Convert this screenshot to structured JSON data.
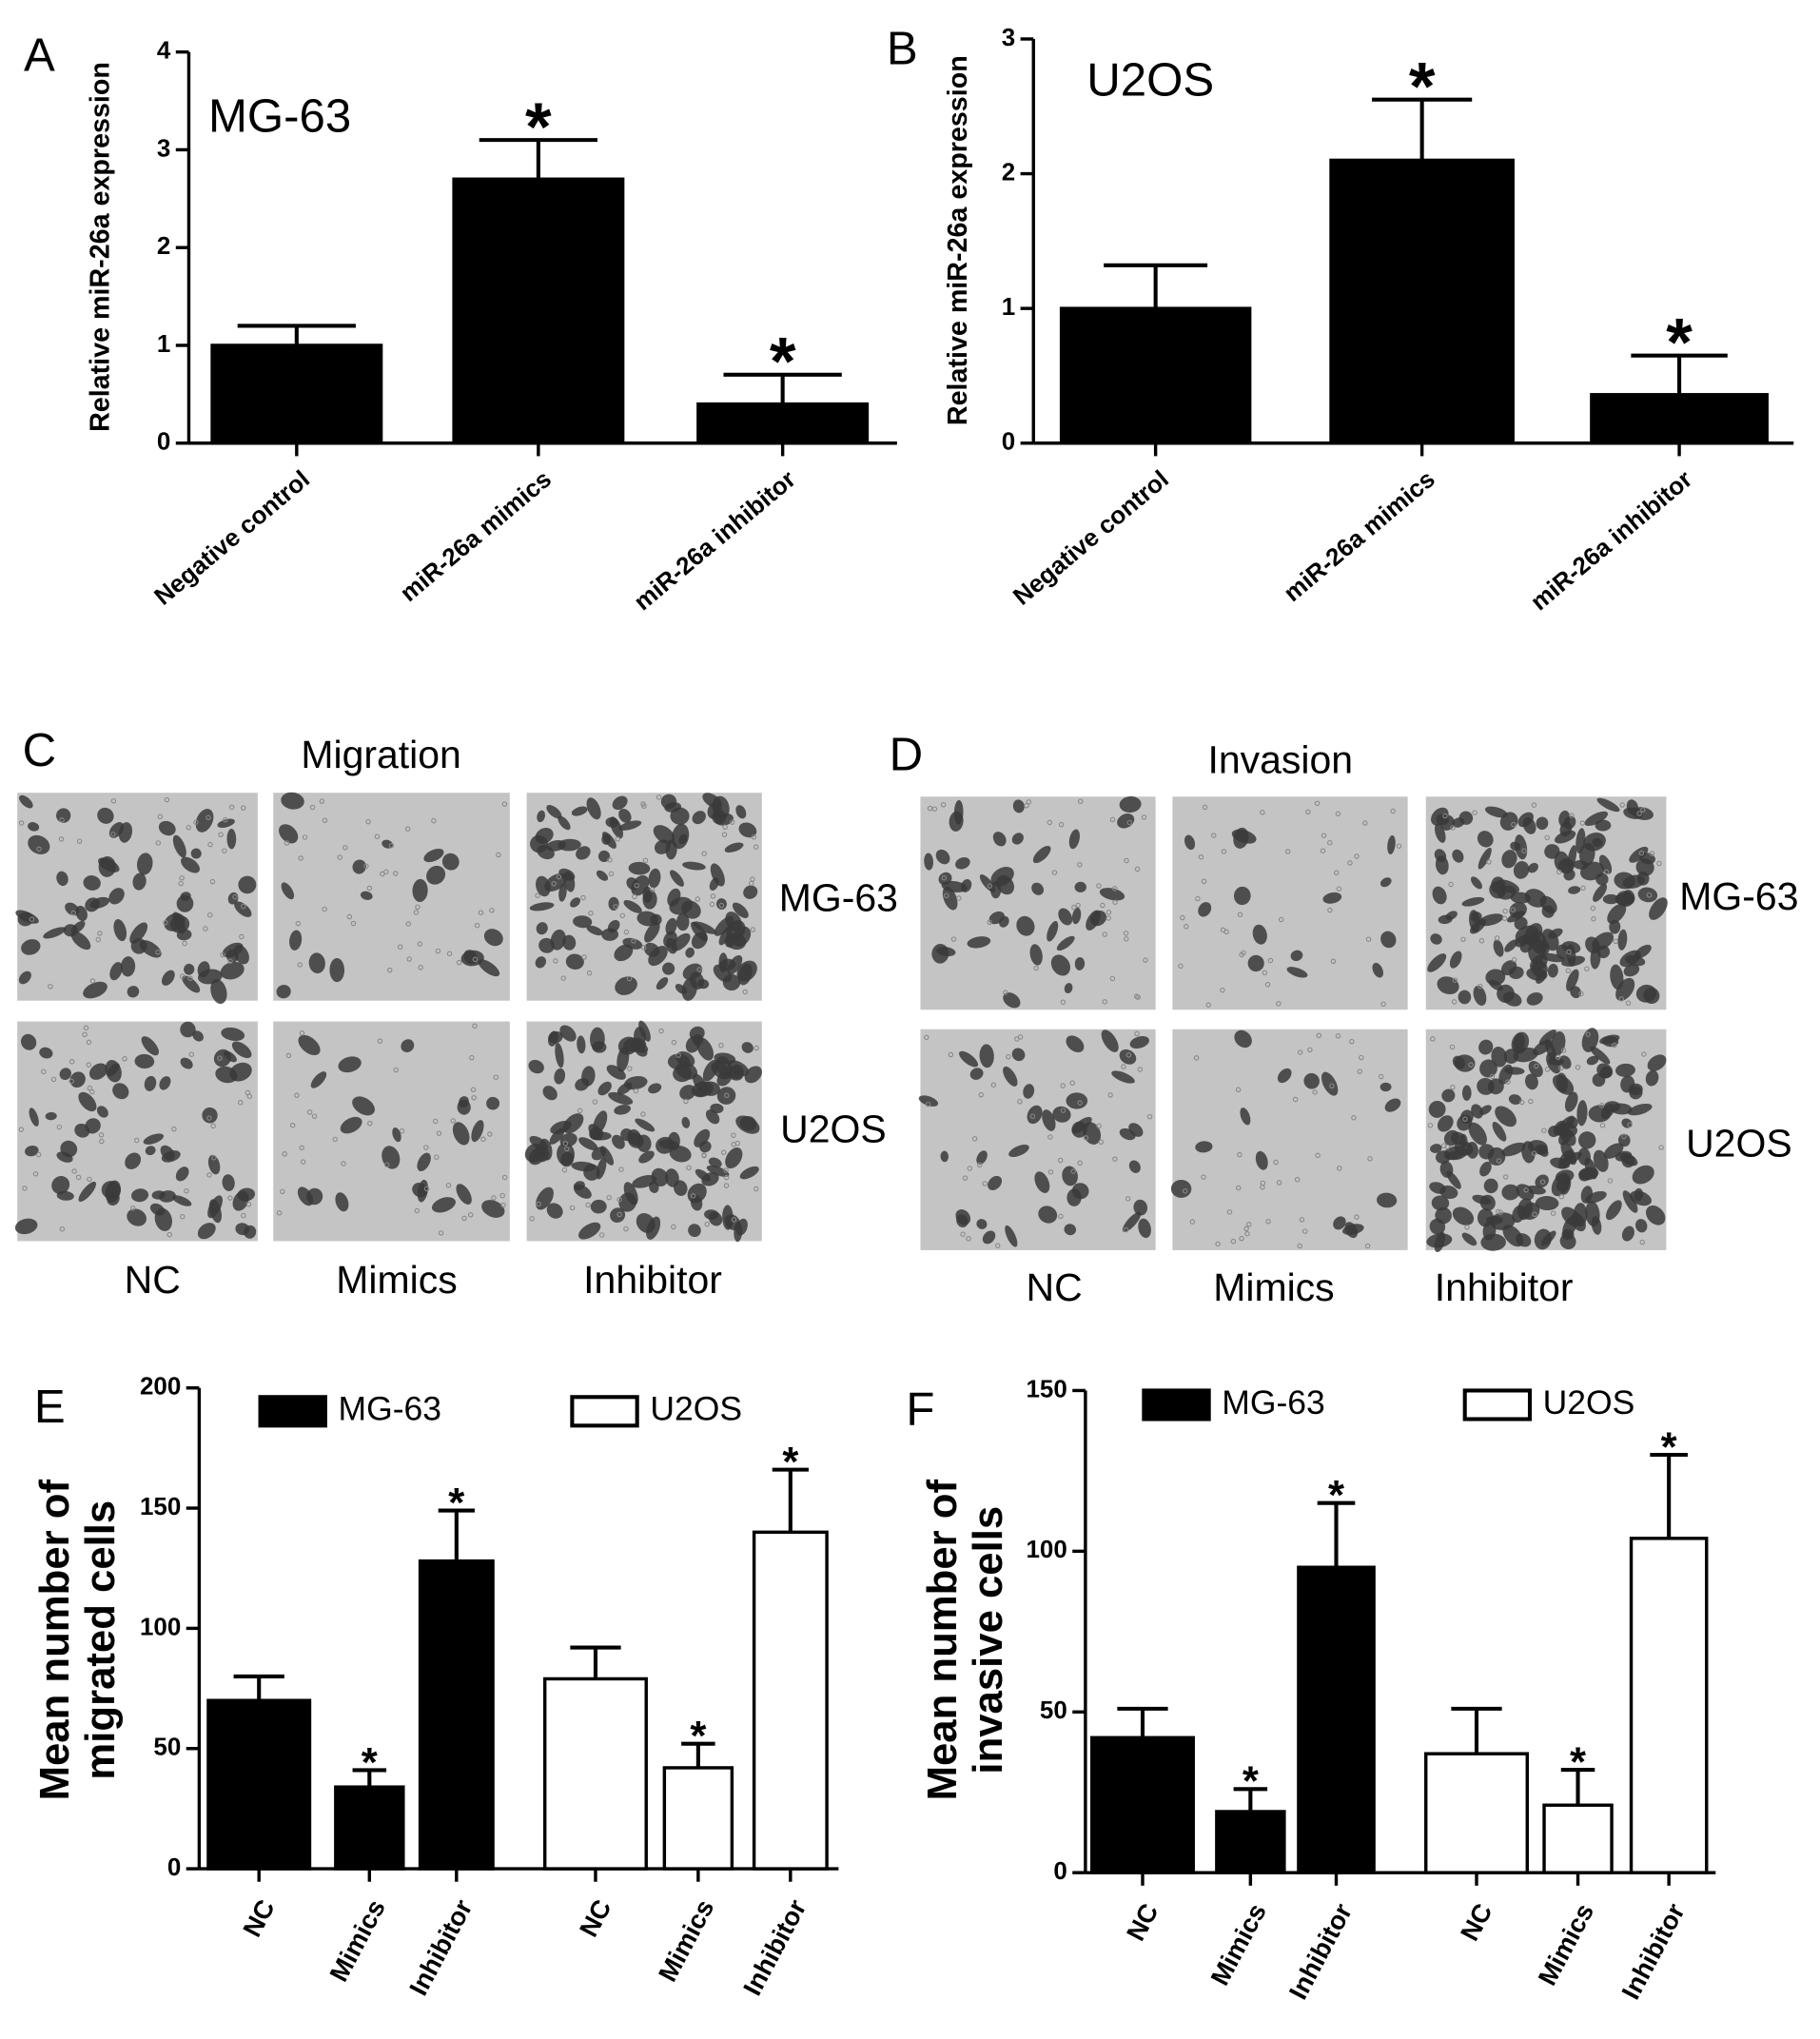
{
  "chart_data": [
    {
      "type": "bar",
      "panel": "A",
      "annotation": "MG-63",
      "ylabel": "Relative miR-26a expression",
      "categories": [
        "Negative control",
        "miR-26a mimics",
        "miR-26a inhibitor"
      ],
      "values": [
        1.0,
        2.7,
        0.4
      ],
      "errors": [
        0.2,
        0.4,
        0.3
      ],
      "significance": [
        null,
        "*",
        "*"
      ],
      "color": "#000000",
      "ylim": [
        0,
        4
      ],
      "yticks": [
        0,
        1,
        2,
        3,
        4
      ]
    },
    {
      "type": "bar",
      "panel": "B",
      "annotation": "U2OS",
      "ylabel": "Relative miR-26a expression",
      "categories": [
        "Negative control",
        "miR-26a mimics",
        "miR-26a inhibitor"
      ],
      "values": [
        1.0,
        2.1,
        0.36
      ],
      "errors": [
        0.32,
        0.45,
        0.29
      ],
      "significance": [
        null,
        "*",
        "*"
      ],
      "color": "#000000",
      "ylim": [
        0,
        3
      ],
      "yticks": [
        0,
        1,
        2,
        3
      ]
    },
    {
      "type": "bar",
      "panel": "E",
      "ylabel": [
        "Mean number of",
        "migrated cells"
      ],
      "categories": [
        "NC",
        "Mimics",
        "Inhibitor"
      ],
      "series": [
        {
          "name": "MG-63",
          "color": "#000000",
          "values": [
            70,
            34,
            128
          ],
          "errors": [
            10,
            7,
            21
          ],
          "significance": [
            null,
            "*",
            "*"
          ]
        },
        {
          "name": "U2OS",
          "color": "#ffffff",
          "values": [
            79,
            42,
            140
          ],
          "errors": [
            13,
            10,
            26
          ],
          "significance": [
            null,
            "*",
            "*"
          ]
        }
      ],
      "ylim": [
        0,
        200
      ],
      "yticks": [
        0,
        50,
        100,
        150,
        200
      ]
    },
    {
      "type": "bar",
      "panel": "F",
      "ylabel": [
        "Mean number of",
        "invasive cells"
      ],
      "categories": [
        "NC",
        "Mimics",
        "Inhibitor"
      ],
      "series": [
        {
          "name": "MG-63",
          "color": "#000000",
          "values": [
            42,
            19,
            95
          ],
          "errors": [
            9,
            7,
            20
          ],
          "significance": [
            null,
            "*",
            "*"
          ]
        },
        {
          "name": "U2OS",
          "color": "#ffffff",
          "values": [
            37,
            21,
            104
          ],
          "errors": [
            14,
            11,
            26
          ],
          "significance": [
            null,
            "*",
            "*"
          ]
        }
      ],
      "ylim": [
        0,
        150
      ],
      "yticks": [
        0,
        50,
        100,
        150
      ]
    }
  ],
  "figures": [
    {
      "panel": "C",
      "title": "Migration",
      "rows": [
        "MG-63",
        "U2OS"
      ],
      "columns": [
        "NC",
        "Mimics",
        "Inhibitor"
      ]
    },
    {
      "panel": "D",
      "title": "Invasion",
      "rows": [
        "MG-63",
        "U2OS"
      ],
      "columns": [
        "NC",
        "Mimics",
        "Inhibitor"
      ]
    }
  ]
}
